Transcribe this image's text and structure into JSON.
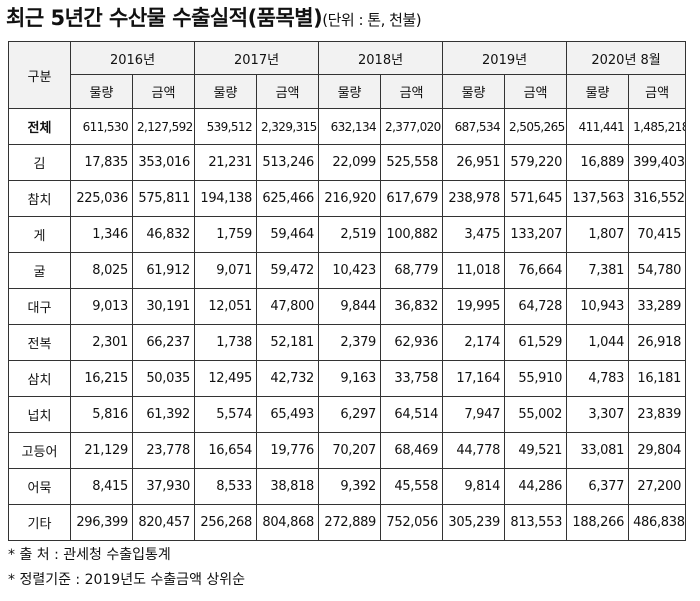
{
  "title": "최근 5년간 수산물 수출실적(품목별)",
  "unit_note": "(단위 : 톤, 천불)",
  "header": {
    "corner": "구분",
    "years": [
      "2016년",
      "2017년",
      "2018년",
      "2019년",
      "2020년 8월"
    ],
    "sub": [
      "물량",
      "금액"
    ]
  },
  "rows": [
    {
      "label": "전체",
      "values": [
        "611,530",
        "2,127,592",
        "539,512",
        "2,329,315",
        "632,134",
        "2,377,020",
        "687,534",
        "2,505,265",
        "411,441",
        "1,485,218"
      ]
    },
    {
      "label": "김",
      "values": [
        "17,835",
        "353,016",
        "21,231",
        "513,246",
        "22,099",
        "525,558",
        "26,951",
        "579,220",
        "16,889",
        "399,403"
      ]
    },
    {
      "label": "참치",
      "values": [
        "225,036",
        "575,811",
        "194,138",
        "625,466",
        "216,920",
        "617,679",
        "238,978",
        "571,645",
        "137,563",
        "316,552"
      ]
    },
    {
      "label": "게",
      "values": [
        "1,346",
        "46,832",
        "1,759",
        "59,464",
        "2,519",
        "100,882",
        "3,475",
        "133,207",
        "1,807",
        "70,415"
      ]
    },
    {
      "label": "굴",
      "values": [
        "8,025",
        "61,912",
        "9,071",
        "59,472",
        "10,423",
        "68,779",
        "11,018",
        "76,664",
        "7,381",
        "54,780"
      ]
    },
    {
      "label": "대구",
      "values": [
        "9,013",
        "30,191",
        "12,051",
        "47,800",
        "9,844",
        "36,832",
        "19,995",
        "64,728",
        "10,943",
        "33,289"
      ]
    },
    {
      "label": "전복",
      "values": [
        "2,301",
        "66,237",
        "1,738",
        "52,181",
        "2,379",
        "62,936",
        "2,174",
        "61,529",
        "1,044",
        "26,918"
      ]
    },
    {
      "label": "삼치",
      "values": [
        "16,215",
        "50,035",
        "12,495",
        "42,732",
        "9,163",
        "33,758",
        "17,164",
        "55,910",
        "4,783",
        "16,181"
      ]
    },
    {
      "label": "넙치",
      "values": [
        "5,816",
        "61,392",
        "5,574",
        "65,493",
        "6,297",
        "64,514",
        "7,947",
        "55,002",
        "3,307",
        "23,839"
      ]
    },
    {
      "label": "고등어",
      "values": [
        "21,129",
        "23,778",
        "16,654",
        "19,776",
        "70,207",
        "68,469",
        "44,778",
        "49,521",
        "33,081",
        "29,804"
      ]
    },
    {
      "label": "어묵",
      "values": [
        "8,415",
        "37,930",
        "8,533",
        "38,818",
        "9,392",
        "45,558",
        "9,814",
        "44,286",
        "6,377",
        "27,200"
      ]
    },
    {
      "label": "기타",
      "values": [
        "296,399",
        "820,457",
        "256,268",
        "804,868",
        "272,889",
        "752,056",
        "305,239",
        "813,553",
        "188,266",
        "486,838"
      ]
    }
  ],
  "notes": [
    "* 출      처 : 관세청 수출입통계",
    "* 정렬기준 : 2019년도 수출금액 상위순"
  ]
}
